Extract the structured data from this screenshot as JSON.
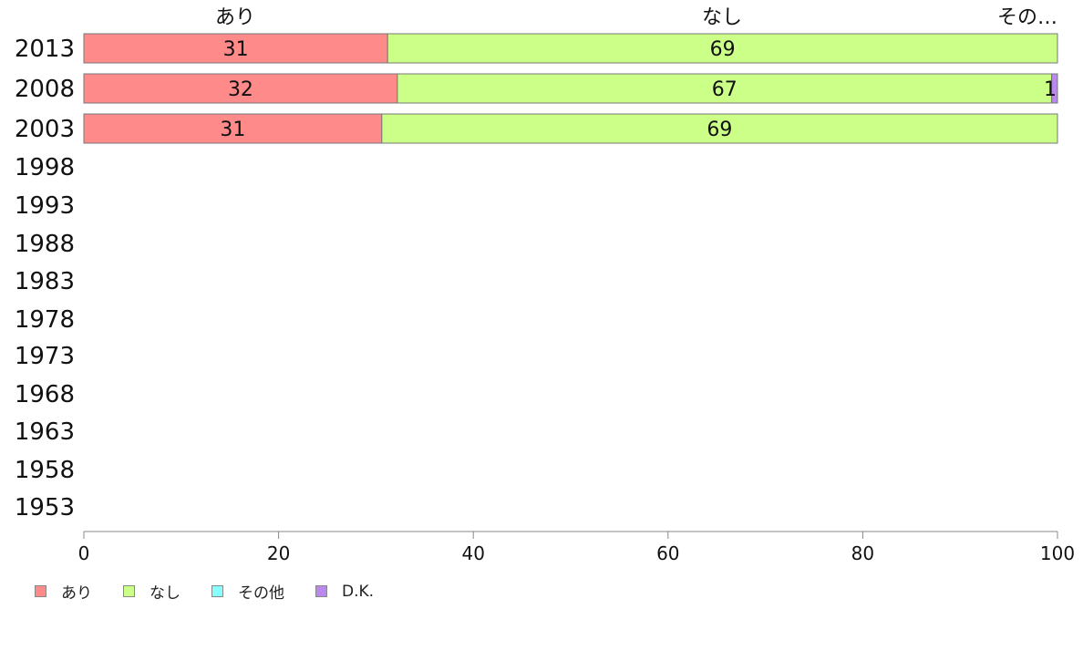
{
  "chart_data": {
    "type": "bar",
    "orientation": "horizontal",
    "stacked": true,
    "categories": [
      "2013",
      "2008",
      "2003",
      "1998",
      "1993",
      "1988",
      "1983",
      "1978",
      "1973",
      "1968",
      "1963",
      "1958",
      "1953"
    ],
    "series": [
      {
        "name": "あり",
        "color": "#ff8a8a",
        "values": [
          31.2,
          32.2,
          30.6,
          null,
          null,
          null,
          null,
          null,
          null,
          null,
          null,
          null,
          null
        ],
        "labels": [
          "31",
          "32",
          "31"
        ]
      },
      {
        "name": "なし",
        "color": "#ccff88",
        "values": [
          68.8,
          67.2,
          69.4,
          null,
          null,
          null,
          null,
          null,
          null,
          null,
          null,
          null,
          null
        ],
        "labels": [
          "69",
          "67",
          "69"
        ]
      },
      {
        "name": "その他",
        "color": "#88ffff",
        "values": [
          0,
          0,
          0,
          null,
          null,
          null,
          null,
          null,
          null,
          null,
          null,
          null,
          null
        ],
        "labels": [
          "",
          "",
          ""
        ]
      },
      {
        "name": "D.K.",
        "color": "#bb88ee",
        "values": [
          0,
          0.6,
          0,
          null,
          null,
          null,
          null,
          null,
          null,
          null,
          null,
          null,
          null
        ],
        "labels": [
          "",
          "1",
          ""
        ]
      }
    ],
    "top_labels": [
      "あり",
      "なし",
      "その…"
    ],
    "xlim": [
      0,
      100
    ],
    "xticks": [
      0,
      20,
      40,
      60,
      80,
      100
    ],
    "legend_position": "bottom-left",
    "grid": false
  }
}
